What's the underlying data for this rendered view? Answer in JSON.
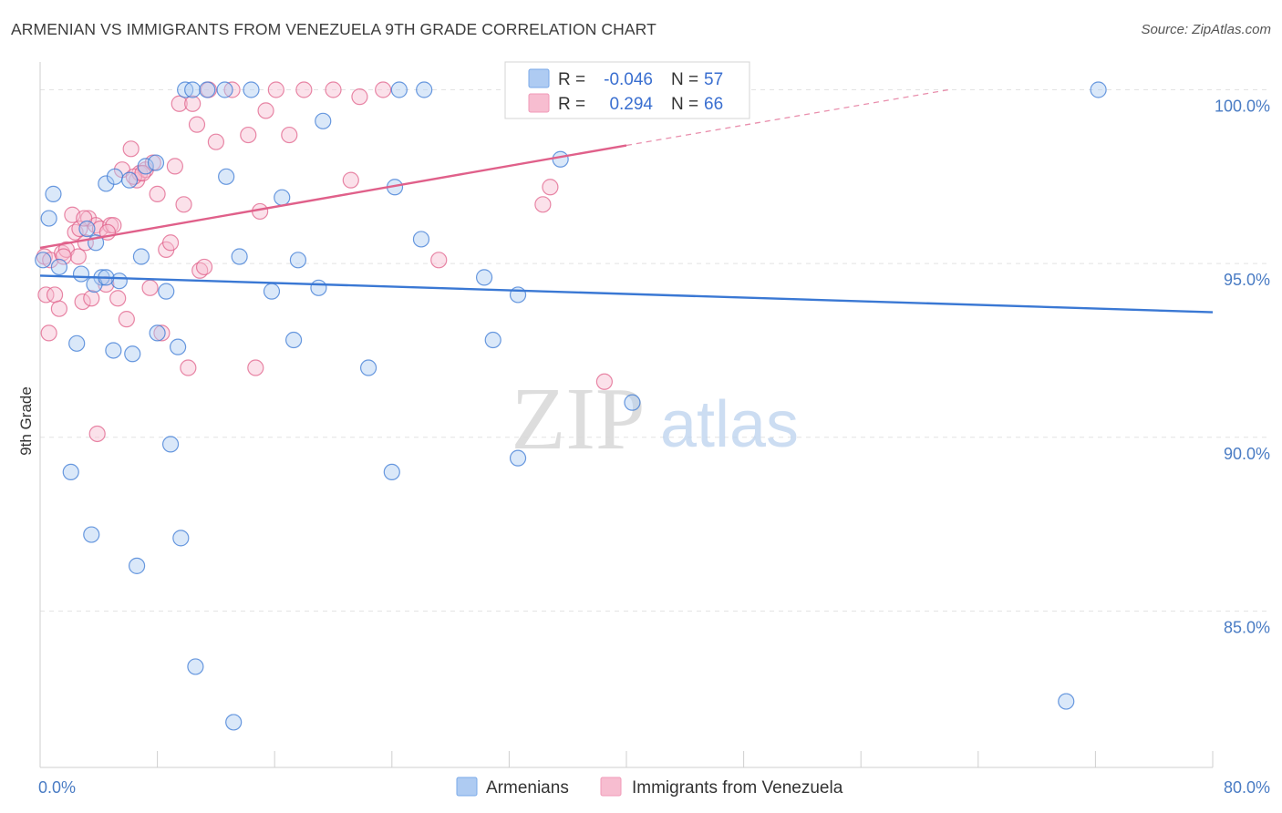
{
  "title": "ARMENIAN VS IMMIGRANTS FROM VENEZUELA 9TH GRADE CORRELATION CHART",
  "source": "Source: ZipAtlas.com",
  "watermark": {
    "zip": "ZIP",
    "atlas": "atlas"
  },
  "legend_top": [
    {
      "r_label": "R =",
      "r_value": "-0.046",
      "n_label": "N =",
      "n_value": "57",
      "color": "#7aaae8"
    },
    {
      "r_label": "R =",
      "r_value": " 0.294",
      "n_label": "N =",
      "n_value": "66",
      "color": "#f09ab8"
    }
  ],
  "legend_bottom": [
    "Armenians",
    "Immigrants from Venezuela"
  ],
  "colors": {
    "blue": "#3a78d4",
    "pink": "#e0608a",
    "blue_fill": "#aecbf2",
    "pink_fill": "#f7bdd0"
  },
  "chart_data": {
    "type": "scatter",
    "ylabel": "9th Grade",
    "xlim": [
      0,
      80
    ],
    "ylim": [
      80.5,
      100.8
    ],
    "x_tick_labels": [
      {
        "value": 0,
        "label": "0.0%"
      },
      {
        "value": 80,
        "label": "80.0%"
      }
    ],
    "y_ticks": [
      {
        "value": 85,
        "label": "85.0%"
      },
      {
        "value": 90,
        "label": "90.0%"
      },
      {
        "value": 95,
        "label": "95.0%"
      },
      {
        "value": 100,
        "label": "100.0%"
      }
    ],
    "series": [
      {
        "name": "Armenians",
        "trend": {
          "x0": 0,
          "y0": 94.65,
          "x1": 80,
          "y1": 93.6,
          "dashed_to": null
        },
        "points": [
          [
            0.2,
            95.1
          ],
          [
            0.6,
            96.3
          ],
          [
            0.9,
            97.0
          ],
          [
            1.3,
            94.9
          ],
          [
            2.1,
            89.0
          ],
          [
            2.5,
            92.7
          ],
          [
            2.8,
            94.7
          ],
          [
            3.2,
            96.0
          ],
          [
            3.5,
            87.2
          ],
          [
            3.8,
            95.6
          ],
          [
            4.2,
            94.6
          ],
          [
            4.5,
            97.3
          ],
          [
            5.0,
            92.5
          ],
          [
            5.1,
            97.5
          ],
          [
            5.4,
            94.5
          ],
          [
            6.1,
            97.4
          ],
          [
            6.3,
            92.4
          ],
          [
            6.6,
            86.3
          ],
          [
            6.9,
            95.2
          ],
          [
            7.2,
            97.8
          ],
          [
            7.9,
            97.9
          ],
          [
            8.6,
            94.2
          ],
          [
            8.9,
            89.8
          ],
          [
            9.4,
            92.6
          ],
          [
            9.6,
            87.1
          ],
          [
            9.9,
            100.0
          ],
          [
            10.4,
            100.0
          ],
          [
            10.6,
            83.4
          ],
          [
            11.4,
            100.0
          ],
          [
            12.6,
            100.0
          ],
          [
            12.7,
            97.5
          ],
          [
            13.2,
            81.8
          ],
          [
            13.6,
            95.2
          ],
          [
            14.4,
            100.0
          ],
          [
            15.8,
            94.2
          ],
          [
            16.5,
            96.9
          ],
          [
            17.3,
            92.8
          ],
          [
            17.6,
            95.1
          ],
          [
            19.0,
            94.3
          ],
          [
            19.3,
            99.1
          ],
          [
            22.4,
            92.0
          ],
          [
            24.0,
            89.0
          ],
          [
            24.2,
            97.2
          ],
          [
            24.5,
            100.0
          ],
          [
            26.0,
            95.7
          ],
          [
            26.2,
            100.0
          ],
          [
            30.3,
            94.6
          ],
          [
            30.9,
            92.8
          ],
          [
            32.6,
            94.1
          ],
          [
            32.6,
            89.4
          ],
          [
            35.5,
            98.0
          ],
          [
            40.4,
            91.0
          ],
          [
            70.0,
            82.4
          ],
          [
            72.2,
            100.0
          ],
          [
            3.7,
            94.4
          ],
          [
            4.5,
            94.6
          ],
          [
            8.0,
            93.0
          ]
        ]
      },
      {
        "name": "Immigrants from Venezuela",
        "trend": {
          "x0": 0,
          "y0": 95.45,
          "x1": 40,
          "y1": 98.4,
          "dashed_to": {
            "x": 62,
            "y": 100.0
          }
        },
        "points": [
          [
            0.3,
            95.2
          ],
          [
            0.4,
            94.1
          ],
          [
            0.6,
            93.0
          ],
          [
            0.7,
            95.1
          ],
          [
            1.0,
            94.1
          ],
          [
            1.3,
            93.7
          ],
          [
            1.5,
            95.3
          ],
          [
            1.8,
            95.4
          ],
          [
            2.2,
            96.4
          ],
          [
            2.4,
            95.9
          ],
          [
            2.6,
            95.2
          ],
          [
            2.9,
            93.9
          ],
          [
            3.1,
            95.6
          ],
          [
            3.3,
            96.3
          ],
          [
            3.5,
            94.0
          ],
          [
            3.8,
            96.1
          ],
          [
            3.9,
            90.1
          ],
          [
            4.1,
            96.0
          ],
          [
            4.5,
            94.4
          ],
          [
            4.8,
            96.1
          ],
          [
            5.0,
            96.1
          ],
          [
            5.3,
            94.0
          ],
          [
            5.6,
            97.7
          ],
          [
            5.9,
            93.4
          ],
          [
            6.2,
            98.3
          ],
          [
            6.6,
            97.4
          ],
          [
            6.8,
            97.6
          ],
          [
            7.2,
            97.7
          ],
          [
            7.5,
            94.3
          ],
          [
            7.7,
            97.9
          ],
          [
            8.0,
            97.0
          ],
          [
            8.3,
            93.0
          ],
          [
            8.6,
            95.4
          ],
          [
            8.9,
            95.6
          ],
          [
            9.2,
            97.8
          ],
          [
            9.5,
            99.6
          ],
          [
            9.8,
            96.7
          ],
          [
            10.1,
            92.0
          ],
          [
            10.4,
            99.6
          ],
          [
            10.7,
            99.0
          ],
          [
            10.9,
            94.8
          ],
          [
            11.2,
            94.9
          ],
          [
            11.5,
            100.0
          ],
          [
            12.0,
            98.5
          ],
          [
            13.1,
            100.0
          ],
          [
            14.2,
            98.7
          ],
          [
            14.7,
            92.0
          ],
          [
            15.0,
            96.5
          ],
          [
            15.4,
            99.4
          ],
          [
            16.1,
            100.0
          ],
          [
            17.0,
            98.7
          ],
          [
            18.0,
            100.0
          ],
          [
            20.0,
            100.0
          ],
          [
            21.2,
            97.4
          ],
          [
            21.8,
            99.8
          ],
          [
            23.4,
            100.0
          ],
          [
            27.2,
            95.1
          ],
          [
            34.3,
            96.7
          ],
          [
            34.8,
            97.2
          ],
          [
            38.5,
            91.6
          ],
          [
            4.6,
            95.9
          ],
          [
            1.6,
            95.2
          ],
          [
            2.7,
            96.0
          ],
          [
            3.0,
            96.3
          ],
          [
            6.4,
            97.5
          ],
          [
            7.0,
            97.6
          ]
        ]
      }
    ]
  }
}
